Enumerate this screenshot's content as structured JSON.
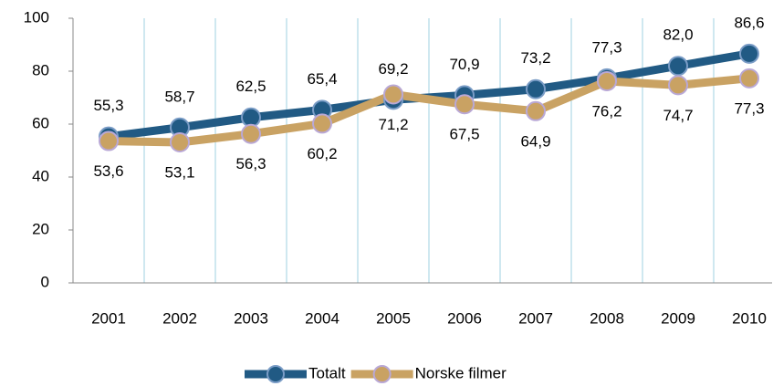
{
  "chart_data": {
    "type": "line",
    "categories": [
      "2001",
      "2002",
      "2003",
      "2004",
      "2005",
      "2006",
      "2007",
      "2008",
      "2009",
      "2010"
    ],
    "series": [
      {
        "name": "Totalt",
        "color": "#215a84",
        "values": [
          55.3,
          58.7,
          62.5,
          65.4,
          69.2,
          70.9,
          73.2,
          77.3,
          82.0,
          86.6
        ],
        "value_labels": [
          "55,3",
          "58,7",
          "62,5",
          "65,4",
          "69,2",
          "70,9",
          "73,2",
          "77,3",
          "82,0",
          "86,6"
        ]
      },
      {
        "name": "Norske filmer",
        "color": "#c9a263",
        "values": [
          53.6,
          53.1,
          56.3,
          60.2,
          71.2,
          67.5,
          64.9,
          76.2,
          74.7,
          77.3
        ],
        "value_labels": [
          "53,6",
          "53,1",
          "56,3",
          "60,2",
          "71,2",
          "67,5",
          "64,9",
          "76,2",
          "74,7",
          "77,3"
        ]
      }
    ],
    "ylim": [
      0,
      100
    ],
    "yticks": [
      0,
      20,
      40,
      60,
      80,
      100
    ],
    "grid": true,
    "legend": "bottom"
  }
}
